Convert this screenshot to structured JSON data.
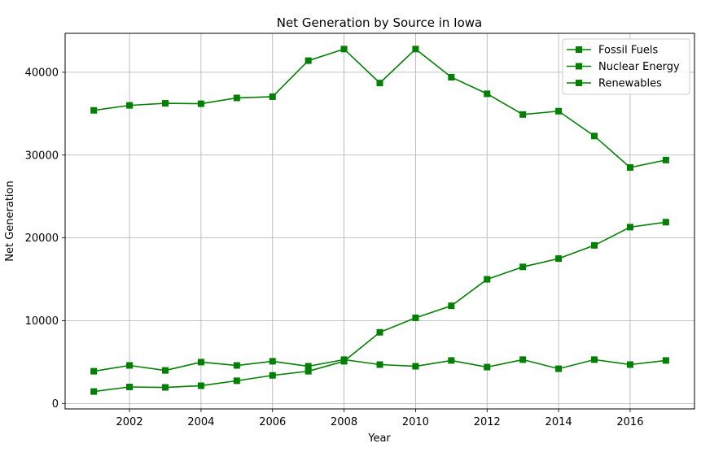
{
  "chart_data": {
    "type": "line",
    "title": "Net Generation by Source in Iowa",
    "xlabel": "Year",
    "ylabel": "Net Generation",
    "x": [
      2001,
      2002,
      2003,
      2004,
      2005,
      2006,
      2007,
      2008,
      2009,
      2010,
      2011,
      2012,
      2013,
      2014,
      2015,
      2016,
      2017
    ],
    "xlim": [
      2000.2,
      2017.8
    ],
    "ylim": [
      -650,
      44700
    ],
    "xticks": [
      2002,
      2004,
      2006,
      2008,
      2010,
      2012,
      2014,
      2016
    ],
    "xtick_labels": [
      "2002",
      "2004",
      "2006",
      "2008",
      "2010",
      "2012",
      "2014",
      "2016"
    ],
    "yticks": [
      0,
      10000,
      20000,
      30000,
      40000
    ],
    "ytick_labels": [
      "0",
      "10000",
      "20000",
      "30000",
      "40000"
    ],
    "grid": true,
    "legend_position": "top-right",
    "series": [
      {
        "name": "Fossil Fuels",
        "color": "#008000",
        "marker": "square",
        "values": [
          35400,
          36000,
          36250,
          36200,
          36900,
          37050,
          41400,
          42800,
          38700,
          42800,
          39400,
          37400,
          34900,
          35300,
          32300,
          28500,
          29400
        ]
      },
      {
        "name": "Nuclear Energy",
        "color": "#008000",
        "marker": "square",
        "values": [
          3900,
          4600,
          4000,
          5000,
          4600,
          5100,
          4500,
          5300,
          4700,
          4500,
          5200,
          4400,
          5300,
          4200,
          5300,
          4700,
          5200
        ]
      },
      {
        "name": "Renewables",
        "color": "#008000",
        "marker": "square",
        "values": [
          1450,
          2000,
          1950,
          2150,
          2750,
          3400,
          3900,
          5100,
          8600,
          10350,
          11800,
          15000,
          16500,
          17500,
          19100,
          21300,
          21900
        ]
      }
    ]
  }
}
